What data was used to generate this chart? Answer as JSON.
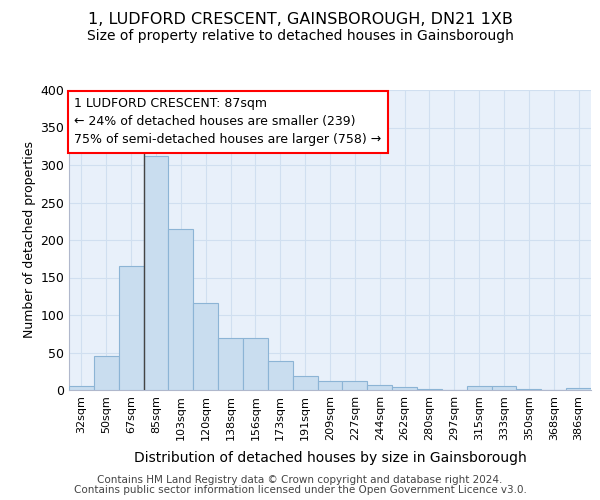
{
  "title": "1, LUDFORD CRESCENT, GAINSBOROUGH, DN21 1XB",
  "subtitle": "Size of property relative to detached houses in Gainsborough",
  "xlabel": "Distribution of detached houses by size in Gainsborough",
  "ylabel": "Number of detached properties",
  "categories": [
    "32sqm",
    "50sqm",
    "67sqm",
    "85sqm",
    "103sqm",
    "120sqm",
    "138sqm",
    "156sqm",
    "173sqm",
    "191sqm",
    "209sqm",
    "227sqm",
    "244sqm",
    "262sqm",
    "280sqm",
    "297sqm",
    "315sqm",
    "333sqm",
    "350sqm",
    "368sqm",
    "386sqm"
  ],
  "values": [
    5,
    46,
    165,
    312,
    215,
    116,
    69,
    69,
    39,
    19,
    12,
    12,
    7,
    4,
    2,
    0,
    5,
    5,
    2,
    0,
    3
  ],
  "bar_color": "#c9ddef",
  "bar_edge_color": "#8cb4d5",
  "grid_color": "#d0dff0",
  "background_color": "#e8f0fa",
  "annotation_text": "1 LUDFORD CRESCENT: 87sqm\n← 24% of detached houses are smaller (239)\n75% of semi-detached houses are larger (758) →",
  "footer_line1": "Contains HM Land Registry data © Crown copyright and database right 2024.",
  "footer_line2": "Contains public sector information licensed under the Open Government Licence v3.0.",
  "ylim": [
    0,
    400
  ],
  "title_fontsize": 11.5,
  "subtitle_fontsize": 10,
  "xlabel_fontsize": 10,
  "ylabel_fontsize": 9,
  "tick_fontsize": 8,
  "annotation_fontsize": 9,
  "footer_fontsize": 7.5
}
